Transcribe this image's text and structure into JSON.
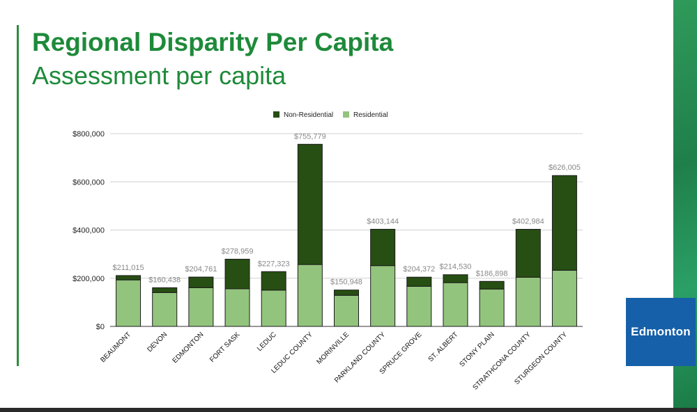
{
  "slide": {
    "title": "Regional Disparity Per Capita",
    "subtitle": "Assessment per capita",
    "logo_text": "Edmonton",
    "accent_color": "#1e8a3a"
  },
  "chart_data": {
    "type": "bar",
    "stacked": true,
    "categories": [
      "BEAUMONT",
      "DEVON",
      "EDMONTON",
      "FORT SASK",
      "LEDUC",
      "LEDUC COUNTY",
      "MORINVILLE",
      "PARKLAND COUNTY",
      "SPRUCE GROVE",
      "ST. ALBERT",
      "STONY PLAIN",
      "STRATHCONA COUNTY",
      "STURGEON COUNTY"
    ],
    "series": [
      {
        "name": "Residential",
        "color": "#93c47d",
        "values": [
          193015,
          140438,
          160761,
          155959,
          150323,
          256779,
          128948,
          252144,
          166372,
          181530,
          154898,
          203984,
          233005
        ]
      },
      {
        "name": "Non-Residential",
        "color": "#274e13",
        "values": [
          18000,
          20000,
          44000,
          123000,
          77000,
          499000,
          22000,
          151000,
          38000,
          33000,
          32000,
          199000,
          393000
        ]
      }
    ],
    "totals": [
      211015,
      160438,
      204761,
      278959,
      227323,
      755779,
      150948,
      403144,
      204372,
      214530,
      186898,
      402984,
      626005
    ],
    "total_labels": [
      "$211,015",
      "$160,438",
      "$204,761",
      "$278,959",
      "$227,323",
      "$755,779",
      "$150,948",
      "$403,144",
      "$204,372",
      "$214,530",
      "$186,898",
      "$402,984",
      "$626,005"
    ],
    "y_ticks": [
      0,
      200000,
      400000,
      600000,
      800000
    ],
    "y_tick_labels": [
      "$0",
      "$200,000",
      "$400,000",
      "$600,000",
      "$800,000"
    ],
    "ylim": [
      0,
      800000
    ],
    "legend": [
      "Non-Residential",
      "Residential"
    ],
    "legend_position": "top",
    "grid": true
  }
}
